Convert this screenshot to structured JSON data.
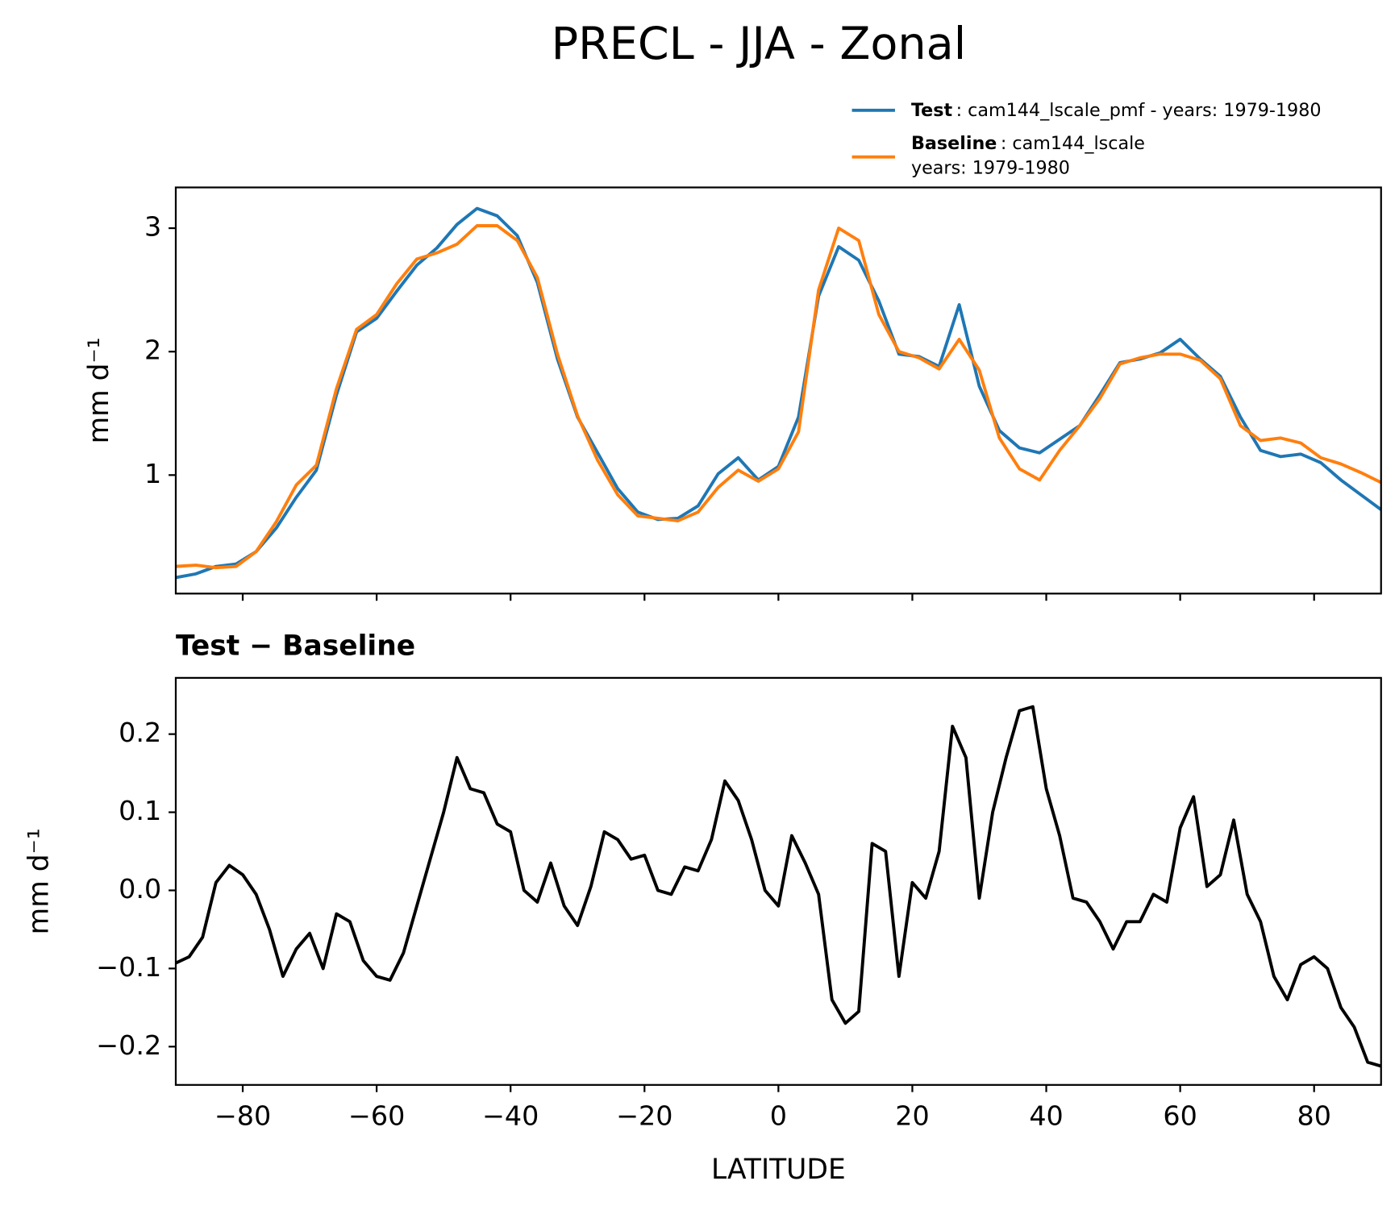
{
  "title": "PRECL - JJA - Zonal",
  "chart_data": [
    {
      "type": "line",
      "ylabel": "mm d⁻¹",
      "xlim": [
        -90,
        90
      ],
      "ylim": [
        0.04,
        3.33
      ],
      "yticks": [
        1,
        2,
        3
      ],
      "xticks": [
        -80,
        -60,
        -40,
        -20,
        0,
        20,
        40,
        60,
        80
      ],
      "show_xtick_labels": false,
      "x": [
        -90,
        -87,
        -84,
        -81,
        -78,
        -75,
        -72,
        -69,
        -66,
        -63,
        -60,
        -57,
        -54,
        -51,
        -48,
        -45,
        -42,
        -39,
        -36,
        -33,
        -30,
        -27,
        -24,
        -21,
        -18,
        -15,
        -12,
        -9,
        -6,
        -3,
        0,
        3,
        6,
        9,
        12,
        15,
        18,
        21,
        24,
        27,
        30,
        33,
        36,
        39,
        42,
        45,
        48,
        51,
        54,
        57,
        60,
        63,
        66,
        69,
        72,
        75,
        78,
        81,
        84,
        87,
        90
      ],
      "series": [
        {
          "name": "Test",
          "legend_text": [
            ": cam144_lscale_pmf - years: 1979-1980"
          ],
          "color": "#1f77b4",
          "values": [
            0.17,
            0.2,
            0.26,
            0.28,
            0.38,
            0.57,
            0.82,
            1.04,
            1.65,
            2.16,
            2.27,
            2.49,
            2.7,
            2.84,
            3.03,
            3.16,
            3.1,
            2.94,
            2.56,
            1.94,
            1.47,
            1.18,
            0.89,
            0.7,
            0.64,
            0.65,
            0.75,
            1.01,
            1.14,
            0.96,
            1.07,
            1.47,
            2.45,
            2.85,
            2.74,
            2.41,
            1.98,
            1.96,
            1.88,
            2.38,
            1.72,
            1.36,
            1.22,
            1.18,
            1.29,
            1.4,
            1.65,
            1.91,
            1.94,
            1.99,
            2.1,
            1.94,
            1.8,
            1.47,
            1.2,
            1.15,
            1.17,
            1.1,
            0.96,
            0.84,
            0.72
          ]
        },
        {
          "name": "Baseline",
          "legend_text": [
            ": cam144_lscale",
            "years: 1979-1980"
          ],
          "color": "#ff7f0e",
          "values": [
            0.26,
            0.27,
            0.25,
            0.26,
            0.38,
            0.62,
            0.92,
            1.08,
            1.7,
            2.18,
            2.3,
            2.55,
            2.75,
            2.8,
            2.87,
            3.02,
            3.02,
            2.9,
            2.6,
            1.98,
            1.48,
            1.12,
            0.84,
            0.67,
            0.65,
            0.63,
            0.7,
            0.9,
            1.04,
            0.95,
            1.05,
            1.35,
            2.5,
            3.0,
            2.9,
            2.3,
            2.0,
            1.95,
            1.86,
            2.1,
            1.85,
            1.3,
            1.05,
            0.96,
            1.2,
            1.4,
            1.62,
            1.9,
            1.95,
            1.98,
            1.98,
            1.93,
            1.78,
            1.4,
            1.28,
            1.3,
            1.26,
            1.14,
            1.09,
            1.02,
            0.94
          ]
        }
      ]
    },
    {
      "type": "line",
      "title": "Test − Baseline",
      "ylabel": "mm d⁻¹",
      "xlabel": "LATITUDE",
      "xlim": [
        -90,
        90
      ],
      "ylim": [
        -0.249,
        0.272
      ],
      "yticks": [
        {
          "value": -0.2,
          "label": "−0.2"
        },
        {
          "value": -0.1,
          "label": "−0.1"
        },
        {
          "value": 0,
          "label": "0.0"
        },
        0.1,
        0.2
      ],
      "xticks": [
        {
          "value": -80,
          "label": "−80"
        },
        {
          "value": -60,
          "label": "−60"
        },
        {
          "value": -40,
          "label": "−40"
        },
        {
          "value": -20,
          "label": "−20"
        },
        0,
        20,
        40,
        60,
        80
      ],
      "show_xtick_labels": true,
      "x": [
        -90,
        -88,
        -86,
        -84,
        -82,
        -80,
        -78,
        -76,
        -74,
        -72,
        -70,
        -68,
        -66,
        -64,
        -62,
        -60,
        -58,
        -56,
        -54,
        -52,
        -50,
        -48,
        -46,
        -44,
        -42,
        -40,
        -38,
        -36,
        -34,
        -32,
        -30,
        -28,
        -26,
        -24,
        -22,
        -20,
        -18,
        -16,
        -14,
        -12,
        -10,
        -8,
        -6,
        -4,
        -2,
        0,
        2,
        4,
        6,
        8,
        10,
        12,
        14,
        16,
        18,
        20,
        22,
        24,
        26,
        28,
        30,
        32,
        34,
        36,
        38,
        40,
        42,
        44,
        46,
        48,
        50,
        52,
        54,
        56,
        58,
        60,
        62,
        64,
        66,
        68,
        70,
        72,
        74,
        76,
        78,
        80,
        82,
        84,
        86,
        88,
        90
      ],
      "series": [
        {
          "color": "#000000",
          "values": [
            -0.093,
            -0.085,
            -0.06,
            0.01,
            0.032,
            0.02,
            -0.005,
            -0.05,
            -0.11,
            -0.075,
            -0.055,
            -0.1,
            -0.03,
            -0.04,
            -0.09,
            -0.11,
            -0.115,
            -0.08,
            -0.02,
            0.04,
            0.1,
            0.17,
            0.13,
            0.125,
            0.085,
            0.075,
            0.0,
            -0.015,
            0.035,
            -0.02,
            -0.045,
            0.005,
            0.075,
            0.065,
            0.04,
            0.045,
            0.0,
            -0.005,
            0.03,
            0.025,
            0.065,
            0.14,
            0.115,
            0.065,
            0.0,
            -0.02,
            0.07,
            0.035,
            -0.005,
            -0.14,
            -0.17,
            -0.155,
            0.06,
            0.05,
            -0.11,
            0.01,
            -0.01,
            0.05,
            0.21,
            0.17,
            -0.01,
            0.1,
            0.17,
            0.23,
            0.235,
            0.13,
            0.07,
            -0.01,
            -0.015,
            -0.04,
            -0.075,
            -0.04,
            -0.04,
            -0.005,
            -0.015,
            0.08,
            0.12,
            0.005,
            0.02,
            0.09,
            -0.005,
            -0.04,
            -0.11,
            -0.14,
            -0.095,
            -0.085,
            -0.1,
            -0.15,
            -0.175,
            -0.22,
            -0.225
          ]
        }
      ]
    }
  ]
}
